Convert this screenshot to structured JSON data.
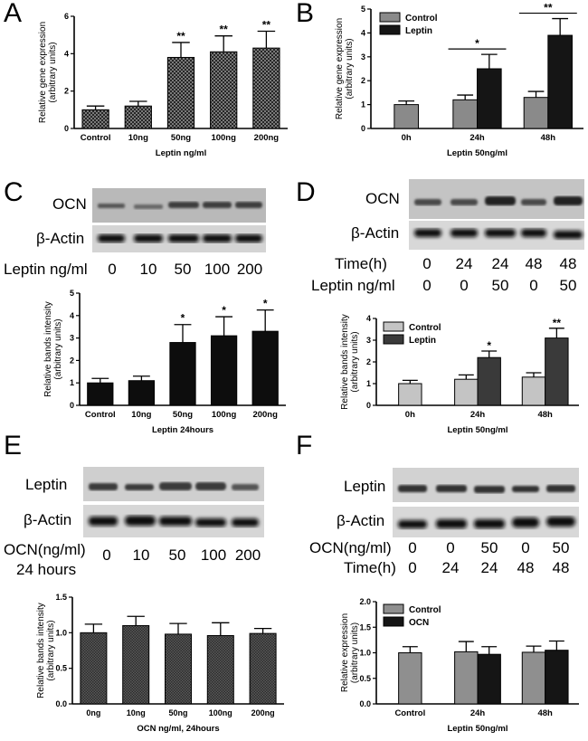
{
  "panels": {
    "A": "A",
    "B": "B",
    "C": "C",
    "D": "D",
    "E": "E",
    "F": "F"
  },
  "colors": {
    "bar_black": "#0d0d0d",
    "bar_gray": "#8a8a8a",
    "bar_lightgray": "#c4c4c4",
    "bar_checker": "#444444"
  },
  "blots": {
    "C": {
      "bands": [
        "OCN",
        "β-Actin"
      ],
      "row_label": "Leptin ng/ml",
      "lanes": [
        "0",
        "10",
        "50",
        "100",
        "200"
      ]
    },
    "D": {
      "bands": [
        "OCN",
        "β-Actin"
      ],
      "row1_label": "Time(h)",
      "row1": [
        "0",
        "24",
        "24",
        "48",
        "48"
      ],
      "row2_label": "Leptin ng/ml",
      "row2": [
        "0",
        "0",
        "50",
        "0",
        "50"
      ]
    },
    "E": {
      "bands": [
        "Leptin",
        "β-Actin"
      ],
      "row1_label": "OCN(ng/ml)",
      "row2_label": "24 hours",
      "lanes": [
        "0",
        "10",
        "50",
        "100",
        "200"
      ]
    },
    "F": {
      "bands": [
        "Leptin",
        "β-Actin"
      ],
      "row1_label": "OCN(ng/ml)",
      "row1": [
        "0",
        "0",
        "50",
        "0",
        "50"
      ],
      "row2_label": "Time(h)",
      "row2": [
        "0",
        "24",
        "24",
        "48",
        "48"
      ]
    }
  },
  "chart_data": [
    {
      "id": "A",
      "type": "bar",
      "categories": [
        "Control",
        "10ng",
        "50ng",
        "100ng",
        "200ng"
      ],
      "values": [
        1.0,
        1.2,
        3.8,
        4.1,
        4.3
      ],
      "errors": [
        0.2,
        0.25,
        0.8,
        0.85,
        0.9
      ],
      "sig": [
        "",
        "",
        "**",
        "**",
        "**"
      ],
      "xlabel": "Leptin ng/ml",
      "ylabel": "Relative gene expression\n(arbitrary units)",
      "ylim": [
        0,
        6
      ],
      "ticks": [
        "0",
        "2",
        "4",
        "6"
      ]
    },
    {
      "id": "B",
      "type": "bar",
      "categories": [
        "0h",
        "24h",
        "48h"
      ],
      "series": [
        {
          "name": "Control",
          "values": [
            1.0,
            1.2,
            1.3
          ],
          "errors": [
            0.15,
            0.2,
            0.25
          ]
        },
        {
          "name": "Leptin",
          "values": [
            null,
            2.5,
            3.9
          ],
          "errors": [
            null,
            0.6,
            0.7
          ]
        }
      ],
      "sig": [
        "",
        "*",
        "**"
      ],
      "xlabel": "Leptin 50ng/ml",
      "ylabel": "Relative gene expression\n(arbitrary units)",
      "ylim": [
        0,
        5
      ],
      "ticks": [
        "0",
        "1",
        "2",
        "3",
        "4",
        "5"
      ]
    },
    {
      "id": "C",
      "type": "bar",
      "categories": [
        "Control",
        "10ng",
        "50ng",
        "100ng",
        "200ng"
      ],
      "values": [
        1.0,
        1.1,
        2.8,
        3.1,
        3.3
      ],
      "errors": [
        0.2,
        0.2,
        0.8,
        0.85,
        0.95
      ],
      "sig": [
        "",
        "",
        "*",
        "*",
        "*"
      ],
      "xlabel": "Leptin 24hours",
      "ylabel": "Relative bands intensity\n(arbitrary units)",
      "ylim": [
        0,
        5
      ],
      "ticks": [
        "0",
        "1",
        "2",
        "3",
        "4",
        "5"
      ]
    },
    {
      "id": "D",
      "type": "bar",
      "categories": [
        "0h",
        "24h",
        "48h"
      ],
      "series": [
        {
          "name": "Control",
          "values": [
            1.0,
            1.2,
            1.3
          ],
          "errors": [
            0.15,
            0.2,
            0.2
          ]
        },
        {
          "name": "Leptin",
          "values": [
            null,
            2.2,
            3.1
          ],
          "errors": [
            null,
            0.3,
            0.45
          ]
        }
      ],
      "sig": [
        "",
        "*",
        "**"
      ],
      "xlabel": "Leptin 50ng/ml",
      "ylabel": "Relative bands intensity\n(arbitrary units)",
      "ylim": [
        0,
        4
      ],
      "ticks": [
        "0",
        "1",
        "2",
        "3",
        "4"
      ]
    },
    {
      "id": "E",
      "type": "bar",
      "categories": [
        "0ng",
        "10ng",
        "50ng",
        "100ng",
        "200ng"
      ],
      "values": [
        1.0,
        1.1,
        0.98,
        0.96,
        0.99
      ],
      "errors": [
        0.12,
        0.13,
        0.15,
        0.18,
        0.07
      ],
      "sig": [
        "",
        "",
        "",
        "",
        ""
      ],
      "xlabel": "OCN ng/ml, 24hours",
      "ylabel": "Relative bands intensity\n(arbitrary units)",
      "ylim": [
        0,
        1.5
      ],
      "ticks": [
        "0.0",
        "0.5",
        "1.0",
        "1.5"
      ]
    },
    {
      "id": "F",
      "type": "bar",
      "categories": [
        "Control",
        "24h",
        "48h"
      ],
      "series": [
        {
          "name": "Control",
          "values": [
            1.0,
            1.02,
            1.01
          ],
          "errors": [
            0.12,
            0.2,
            0.12
          ]
        },
        {
          "name": "OCN",
          "values": [
            null,
            0.97,
            1.05
          ],
          "errors": [
            null,
            0.15,
            0.18
          ]
        }
      ],
      "sig": [
        "",
        "",
        ""
      ],
      "xlabel": "Leptin 50ng/ml",
      "ylabel": "Relative expression\n(arbitrary units)",
      "ylim": [
        0,
        2.0
      ],
      "ticks": [
        "0.0",
        "0.5",
        "1.0",
        "1.5",
        "2.0"
      ]
    }
  ]
}
